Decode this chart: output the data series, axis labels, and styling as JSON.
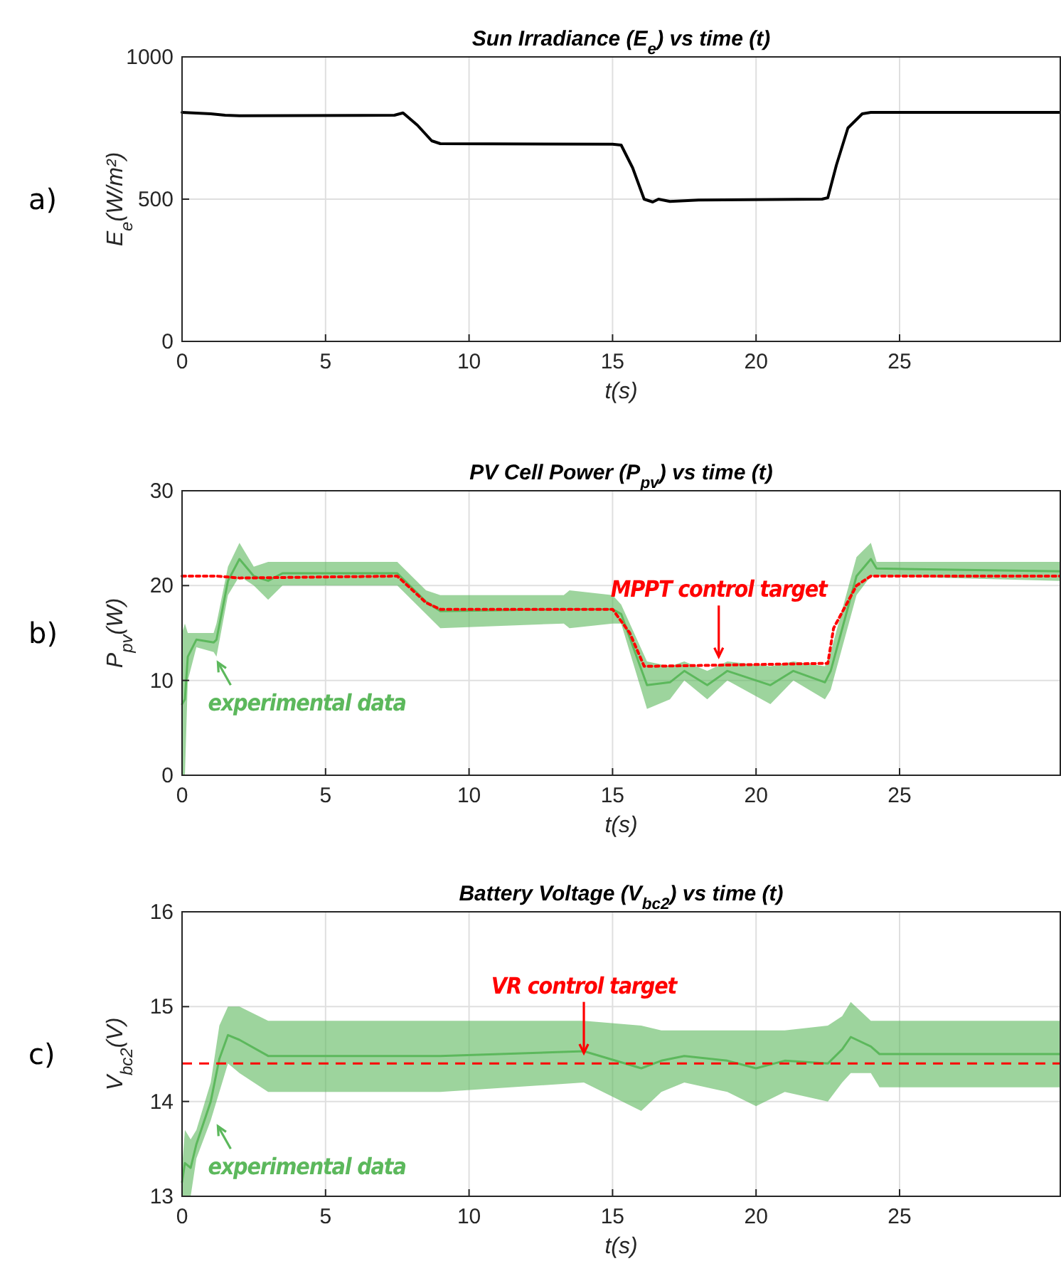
{
  "chart_data": [
    {
      "type": "line",
      "title": "Sun Irradiance (E$_{e}$) vs time (t)",
      "xlabel": "t(s)",
      "ylabel": "E$_{e}$(W/m²)",
      "xlim": [
        0,
        30.6
      ],
      "ylim": [
        0,
        1000
      ],
      "xticks": [
        0,
        5,
        10,
        15,
        20,
        25
      ],
      "yticks": [
        0,
        500,
        1000
      ],
      "grid": true,
      "annotations": [
        "a)"
      ],
      "series": [
        {
          "color": "#000000",
          "x": [
            0,
            1,
            1.5,
            2,
            7.4,
            7.7,
            8.2,
            8.7,
            9,
            15,
            15.3,
            15.7,
            16.1,
            16.4,
            16.6,
            17,
            18,
            22.3,
            22.5,
            22.8,
            23.2,
            23.7,
            24,
            30.6
          ],
          "values": [
            805,
            800,
            795,
            793,
            795,
            803,
            760,
            705,
            695,
            693,
            690,
            610,
            500,
            490,
            500,
            492,
            497,
            500,
            505,
            620,
            750,
            800,
            805,
            805
          ]
        }
      ]
    },
    {
      "type": "line",
      "title": "PV Cell Power (P$_{pv}$) vs time (t)",
      "xlabel": "t(s)",
      "ylabel": "P$_{pv}$(W)",
      "xlim": [
        0,
        30.6
      ],
      "ylim": [
        0,
        30
      ],
      "xticks": [
        0,
        5,
        10,
        15,
        20,
        25
      ],
      "yticks": [
        0,
        10,
        20,
        30
      ],
      "grid": true,
      "annotations": [
        "b)",
        {
          "text": "experimental data",
          "x": 1.2,
          "y": 12.5
        },
        {
          "text": "MPPT control target",
          "x": 18.7,
          "y": 11.9
        }
      ],
      "series": [
        {
          "color": "#5cb85c",
          "x": [
            0,
            0.1,
            0.2,
            0.5,
            1.1,
            1.2,
            1.6,
            2,
            2.5,
            3,
            3.5,
            7.5,
            8.5,
            9,
            13.3,
            13.5,
            15,
            15.3,
            16.2,
            17,
            17.5,
            18.3,
            19,
            20.5,
            21.3,
            22.4,
            22.6,
            23.5,
            24,
            24.2,
            30.6
          ],
          "lower": [
            0,
            0,
            10,
            13.5,
            13,
            12.5,
            19,
            21,
            20,
            18.5,
            20,
            20,
            17,
            15.5,
            16,
            15.5,
            16,
            16,
            7,
            8,
            10,
            8,
            10,
            7.5,
            10,
            8,
            9,
            19,
            21,
            21,
            20.5
          ],
          "upper": [
            15,
            16,
            15,
            15,
            15,
            16,
            22,
            24.5,
            22,
            22.5,
            22.5,
            22.5,
            19.5,
            19,
            19,
            19.5,
            19,
            18,
            12,
            11.5,
            12,
            11,
            12,
            11.5,
            12,
            11.5,
            13,
            23,
            24.5,
            22.5,
            22.5
          ],
          "values": [
            7.5,
            8,
            12.5,
            14.3,
            14,
            14.3,
            20.5,
            22.8,
            21,
            20.5,
            21.3,
            21.3,
            18.3,
            17.3,
            17.5,
            17.5,
            17.5,
            17,
            9.5,
            9.8,
            11,
            9.5,
            11,
            9.5,
            11,
            9.8,
            11,
            21,
            22.8,
            21.8,
            21.5
          ]
        },
        {
          "color": "#ff0000",
          "line_style": "dotted",
          "x": [
            0,
            1.2,
            2,
            7.5,
            8.5,
            9,
            15,
            15.6,
            16.1,
            16.5,
            22.5,
            22.7,
            23.5,
            24,
            30.6
          ],
          "values": [
            21,
            21,
            20.8,
            21,
            18.2,
            17.5,
            17.5,
            15,
            11.5,
            11.5,
            11.8,
            15.5,
            20,
            21,
            21
          ]
        }
      ]
    },
    {
      "type": "line",
      "title": "Battery Voltage (V$_{bc2}$) vs time (t)",
      "xlabel": "t(s)",
      "ylabel": "V$_{bc2}$(V)",
      "xlim": [
        0,
        30.6
      ],
      "ylim": [
        13,
        16
      ],
      "xticks": [
        0,
        5,
        10,
        15,
        20,
        25
      ],
      "yticks": [
        13,
        14,
        15,
        16
      ],
      "grid": true,
      "annotations": [
        "c)",
        {
          "text": "experimental data",
          "x": 1.2,
          "y": 13.8
        },
        {
          "text": "VR control target",
          "x": 14,
          "y": 14.45
        }
      ],
      "ref_lines": [
        {
          "axis": "y",
          "value": 14.4,
          "color": "#ff0000",
          "line_style": "dashed"
        }
      ],
      "series": [
        {
          "color": "#5cb85c",
          "x": [
            0,
            0.1,
            0.3,
            0.5,
            1,
            1.3,
            1.6,
            2,
            3,
            9,
            14,
            16,
            16.7,
            17.5,
            19,
            20,
            21,
            22.5,
            23,
            23.3,
            24,
            24.3,
            30.6
          ],
          "lower": [
            13,
            13,
            13,
            13.4,
            13.8,
            14.1,
            14.4,
            14.3,
            14.1,
            14.1,
            14.2,
            13.9,
            14.1,
            14.2,
            14.1,
            13.95,
            14.1,
            14,
            14.2,
            14.3,
            14.3,
            14.15,
            14.15
          ],
          "upper": [
            13.3,
            13.7,
            13.6,
            13.7,
            14.2,
            14.8,
            15,
            15,
            14.85,
            14.85,
            14.85,
            14.8,
            14.75,
            14.75,
            14.75,
            14.75,
            14.75,
            14.8,
            14.9,
            15.05,
            14.85,
            14.85,
            14.85
          ],
          "values": [
            13.15,
            13.35,
            13.3,
            13.55,
            14,
            14.45,
            14.7,
            14.65,
            14.48,
            14.48,
            14.53,
            14.35,
            14.43,
            14.48,
            14.43,
            14.35,
            14.43,
            14.4,
            14.55,
            14.68,
            14.58,
            14.5,
            14.5
          ]
        }
      ]
    }
  ]
}
